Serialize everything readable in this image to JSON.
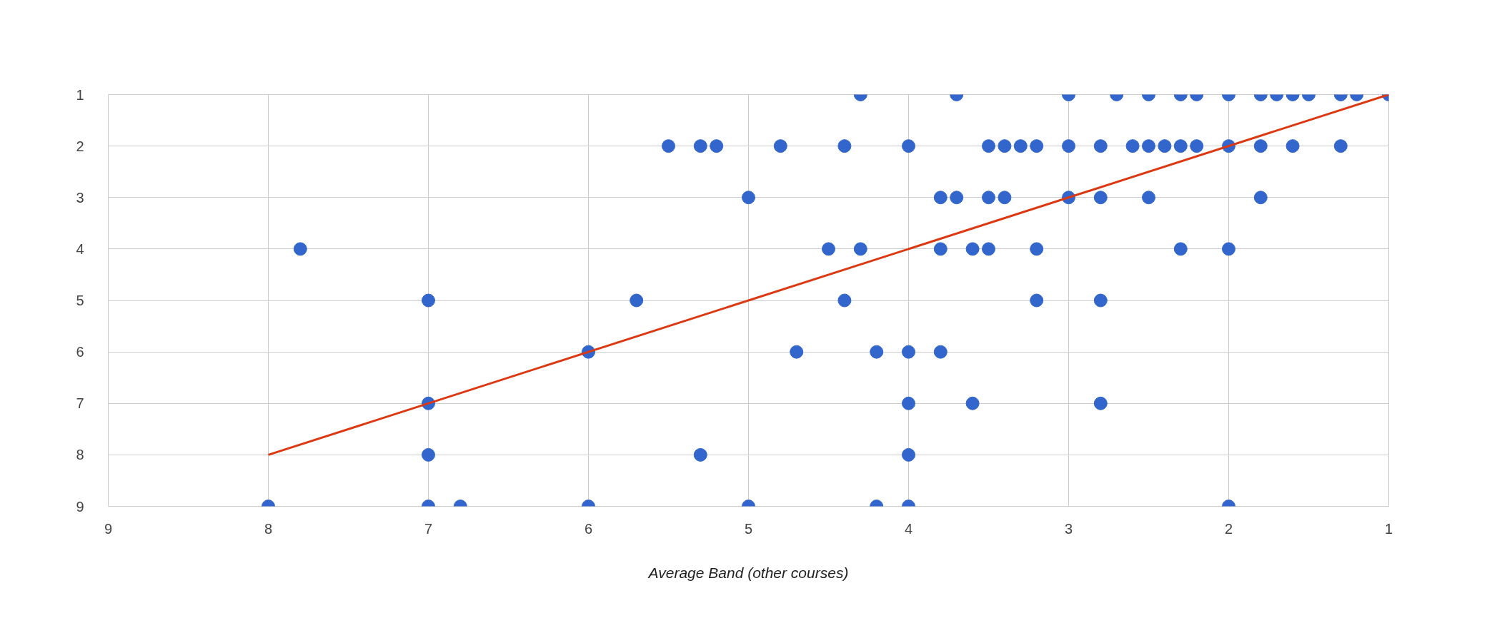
{
  "chart_data": {
    "type": "scatter",
    "xlabel": "Average Band (other courses)",
    "xlim": [
      9,
      1
    ],
    "ylim": [
      9,
      1
    ],
    "xticks": [
      9,
      8,
      7,
      6,
      5,
      4,
      3,
      2,
      1
    ],
    "yticks": [
      1,
      2,
      3,
      4,
      5,
      6,
      7,
      8,
      9
    ],
    "grid": true,
    "series": [
      {
        "marker": "circle",
        "color": "#3366cc",
        "x": [
          4.3,
          3.7,
          3.0,
          2.7,
          2.5,
          2.3,
          2.2,
          2.0,
          1.8,
          1.7,
          1.6,
          1.5,
          1.3,
          1.2,
          1.0,
          5.5,
          5.3,
          5.2,
          4.8,
          4.4,
          4.0,
          3.5,
          3.4,
          3.3,
          3.2,
          3.0,
          2.8,
          2.6,
          2.5,
          2.4,
          2.3,
          2.2,
          2.0,
          1.8,
          1.6,
          1.3,
          5.0,
          3.8,
          3.7,
          3.5,
          3.4,
          3.0,
          2.8,
          2.5,
          1.8,
          7.8,
          4.5,
          4.3,
          3.8,
          3.6,
          3.5,
          3.2,
          2.3,
          2.0,
          7.0,
          5.7,
          4.4,
          3.2,
          2.8,
          6.0,
          4.7,
          4.2,
          4.0,
          3.8,
          7.0,
          4.0,
          3.6,
          2.8,
          7.0,
          5.3,
          4.0,
          8.0,
          7.0,
          6.8,
          6.0,
          5.0,
          4.2,
          4.0,
          2.0
        ],
        "values": [
          1,
          1,
          1,
          1,
          1,
          1,
          1,
          1,
          1,
          1,
          1,
          1,
          1,
          1,
          1,
          2,
          2,
          2,
          2,
          2,
          2,
          2,
          2,
          2,
          2,
          2,
          2,
          2,
          2,
          2,
          2,
          2,
          2,
          2,
          2,
          2,
          3,
          3,
          3,
          3,
          3,
          3,
          3,
          3,
          3,
          4,
          4,
          4,
          4,
          4,
          4,
          4,
          4,
          4,
          5,
          5,
          5,
          5,
          5,
          6,
          6,
          6,
          6,
          6,
          7,
          7,
          7,
          7,
          8,
          8,
          8,
          9,
          9,
          9,
          9,
          9,
          9,
          9,
          9
        ]
      },
      {
        "type": "line",
        "marker": "none",
        "color": "#dc3912",
        "x": [
          8,
          1
        ],
        "values": [
          8,
          1
        ]
      }
    ]
  }
}
